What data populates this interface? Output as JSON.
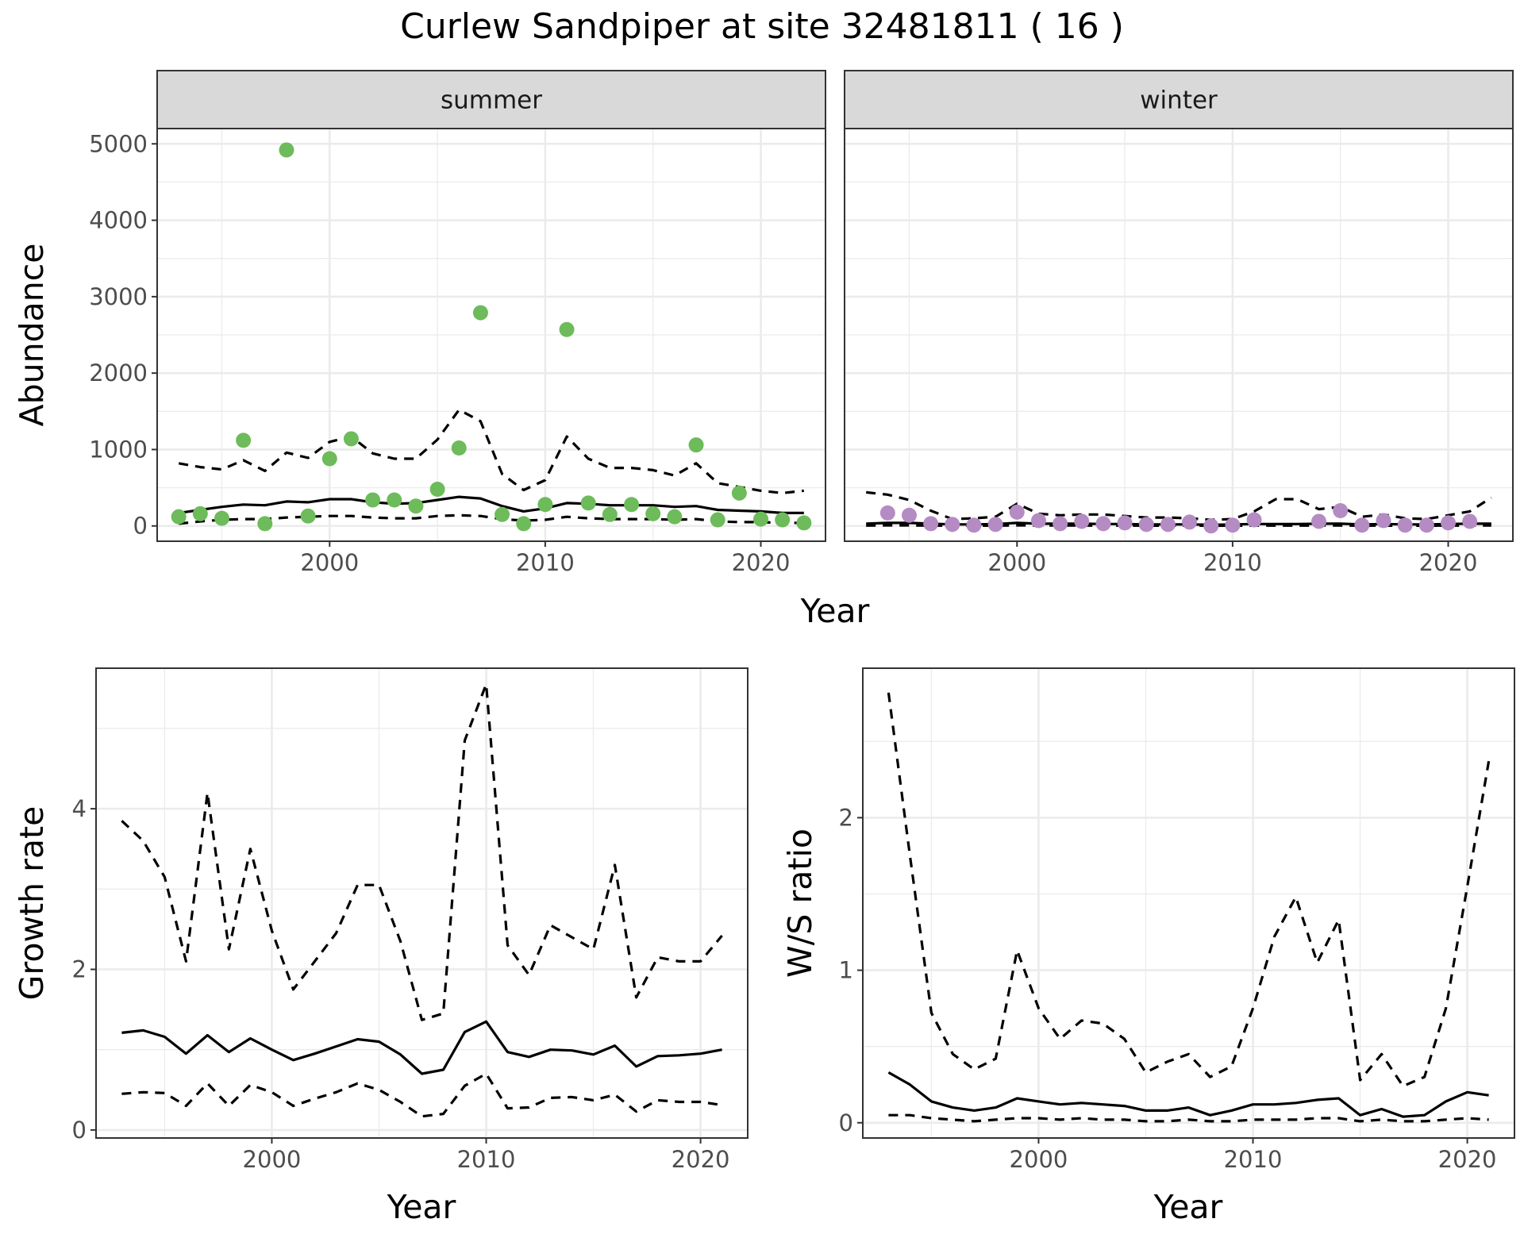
{
  "title": "Curlew Sandpiper at site 32481811 ( 16 )",
  "colors": {
    "summer_points": "#6dbb5a",
    "winter_points": "#b58bc4",
    "line": "#000000",
    "strip_fill": "#d9d9d9",
    "grid": "#ebebeb"
  },
  "chart_data": [
    {
      "type": "scatter",
      "panel": "abundance",
      "xlabel": "Year",
      "ylabel": "Abundance",
      "xlim": [
        1992,
        2023
      ],
      "ylim": [
        -200,
        5200
      ],
      "xticks": [
        2000,
        2010,
        2020
      ],
      "yticks": [
        0,
        1000,
        2000,
        3000,
        4000,
        5000
      ],
      "grid": true,
      "facets": [
        {
          "strip": "summer",
          "points": {
            "x": [
              1993,
              1994,
              1995,
              1996,
              1997,
              1998,
              1999,
              2000,
              2001,
              2002,
              2003,
              2004,
              2005,
              2006,
              2007,
              2008,
              2009,
              2010,
              2011,
              2012,
              2013,
              2014,
              2015,
              2016,
              2017,
              2018,
              2019,
              2020,
              2021,
              2022
            ],
            "y": [
              120,
              160,
              100,
              1120,
              30,
              4920,
              130,
              880,
              1140,
              340,
              340,
              260,
              480,
              1020,
              2790,
              150,
              30,
              280,
              2570,
              300,
              150,
              280,
              160,
              120,
              1060,
              80,
              430,
              90,
              80,
              40
            ]
          },
          "fit": {
            "x": [
              1993,
              1994,
              1995,
              1996,
              1997,
              1998,
              1999,
              2000,
              2001,
              2002,
              2003,
              2004,
              2005,
              2006,
              2007,
              2008,
              2009,
              2010,
              2011,
              2012,
              2013,
              2014,
              2015,
              2016,
              2017,
              2018,
              2019,
              2020,
              2021,
              2022
            ],
            "mean": [
              170,
              210,
              250,
              280,
              270,
              320,
              310,
              350,
              350,
              310,
              290,
              300,
              340,
              380,
              360,
              260,
              190,
              230,
              300,
              290,
              270,
              270,
              270,
              250,
              260,
              210,
              200,
              190,
              170,
              170
            ],
            "lower": [
              30,
              60,
              80,
              90,
              90,
              110,
              120,
              130,
              130,
              110,
              100,
              100,
              130,
              140,
              130,
              90,
              70,
              80,
              120,
              100,
              90,
              90,
              90,
              80,
              90,
              60,
              50,
              50,
              40,
              40
            ],
            "upper": [
              820,
              770,
              740,
              860,
              720,
              960,
              890,
              1100,
              1170,
              950,
              880,
              880,
              1130,
              1520,
              1370,
              680,
              470,
              600,
              1170,
              880,
              760,
              760,
              730,
              660,
              820,
              560,
              510,
              460,
              430,
              460
            ]
          }
        },
        {
          "strip": "winter",
          "points": {
            "x": [
              1994,
              1995,
              1996,
              1997,
              1998,
              1999,
              2000,
              2001,
              2002,
              2003,
              2004,
              2005,
              2006,
              2007,
              2008,
              2009,
              2010,
              2011,
              2014,
              2015,
              2016,
              2017,
              2018,
              2019,
              2020,
              2021
            ],
            "y": [
              170,
              140,
              30,
              20,
              10,
              20,
              180,
              70,
              30,
              60,
              30,
              40,
              20,
              20,
              50,
              0,
              10,
              80,
              60,
              200,
              10,
              70,
              10,
              10,
              40,
              60
            ]
          },
          "fit": {
            "x": [
              1993,
              1994,
              1995,
              1996,
              1997,
              1998,
              1999,
              2000,
              2001,
              2002,
              2003,
              2004,
              2005,
              2006,
              2007,
              2008,
              2009,
              2010,
              2011,
              2012,
              2013,
              2014,
              2015,
              2016,
              2017,
              2018,
              2019,
              2020,
              2021,
              2022
            ],
            "mean": [
              30,
              40,
              40,
              30,
              20,
              20,
              25,
              40,
              30,
              30,
              30,
              25,
              25,
              20,
              20,
              20,
              15,
              20,
              25,
              25,
              25,
              30,
              30,
              20,
              25,
              20,
              20,
              25,
              30,
              30
            ],
            "lower": [
              5,
              8,
              8,
              5,
              4,
              4,
              5,
              8,
              6,
              6,
              6,
              5,
              5,
              4,
              4,
              4,
              3,
              4,
              5,
              5,
              5,
              6,
              6,
              4,
              5,
              4,
              4,
              5,
              6,
              6
            ],
            "upper": [
              440,
              410,
              340,
              200,
              90,
              100,
              120,
              290,
              160,
              140,
              150,
              150,
              130,
              110,
              110,
              100,
              80,
              90,
              190,
              350,
              350,
              220,
              250,
              120,
              150,
              100,
              90,
              140,
              190,
              370
            ]
          }
        }
      ]
    },
    {
      "type": "line",
      "panel": "growth",
      "xlabel": "Year",
      "ylabel": "Growth rate",
      "xlim": [
        1991.8,
        2022.2
      ],
      "ylim": [
        -0.1,
        5.75
      ],
      "xticks": [
        2000,
        2010,
        2020
      ],
      "yticks": [
        0,
        2,
        4
      ],
      "grid": true,
      "x": [
        1993,
        1994,
        1995,
        1996,
        1997,
        1998,
        1999,
        2000,
        2001,
        2002,
        2003,
        2004,
        2005,
        2006,
        2007,
        2008,
        2009,
        2010,
        2011,
        2012,
        2013,
        2014,
        2015,
        2016,
        2017,
        2018,
        2019,
        2020,
        2021
      ],
      "mean": [
        1.21,
        1.24,
        1.16,
        0.95,
        1.18,
        0.97,
        1.14,
        1.0,
        0.87,
        0.95,
        1.04,
        1.13,
        1.1,
        0.94,
        0.7,
        0.75,
        1.22,
        1.35,
        0.97,
        0.91,
        1.0,
        0.99,
        0.94,
        1.05,
        0.79,
        0.92,
        0.93,
        0.95,
        1.0
      ],
      "lower": [
        0.45,
        0.47,
        0.46,
        0.3,
        0.58,
        0.3,
        0.56,
        0.47,
        0.3,
        0.39,
        0.47,
        0.58,
        0.5,
        0.35,
        0.17,
        0.2,
        0.55,
        0.7,
        0.27,
        0.28,
        0.4,
        0.41,
        0.37,
        0.44,
        0.23,
        0.37,
        0.35,
        0.35,
        0.31
      ],
      "upper": [
        3.85,
        3.6,
        3.15,
        2.1,
        4.2,
        2.25,
        3.5,
        2.48,
        1.75,
        2.1,
        2.45,
        3.05,
        3.05,
        2.35,
        1.37,
        1.45,
        4.85,
        5.55,
        2.3,
        1.93,
        2.55,
        2.4,
        2.25,
        3.3,
        1.65,
        2.15,
        2.1,
        2.1,
        2.42
      ]
    },
    {
      "type": "line",
      "panel": "ws_ratio",
      "xlabel": "Year",
      "ylabel": "W/S ratio",
      "xlim": [
        1991.8,
        2022.2
      ],
      "ylim": [
        -0.1,
        2.98
      ],
      "xticks": [
        2000,
        2010,
        2020
      ],
      "yticks": [
        0,
        1,
        2
      ],
      "grid": true,
      "x": [
        1993,
        1994,
        1995,
        1996,
        1997,
        1998,
        1999,
        2000,
        2001,
        2002,
        2003,
        2004,
        2005,
        2006,
        2007,
        2008,
        2009,
        2010,
        2011,
        2012,
        2013,
        2014,
        2015,
        2016,
        2017,
        2018,
        2019,
        2020,
        2021
      ],
      "mean": [
        0.33,
        0.25,
        0.14,
        0.1,
        0.08,
        0.1,
        0.16,
        0.14,
        0.12,
        0.13,
        0.12,
        0.11,
        0.08,
        0.08,
        0.1,
        0.05,
        0.08,
        0.12,
        0.12,
        0.13,
        0.15,
        0.16,
        0.05,
        0.09,
        0.04,
        0.05,
        0.14,
        0.2,
        0.18
      ],
      "lower": [
        0.05,
        0.05,
        0.03,
        0.02,
        0.01,
        0.02,
        0.03,
        0.03,
        0.02,
        0.03,
        0.02,
        0.02,
        0.01,
        0.01,
        0.02,
        0.01,
        0.01,
        0.02,
        0.02,
        0.02,
        0.03,
        0.03,
        0.01,
        0.02,
        0.01,
        0.01,
        0.02,
        0.03,
        0.02
      ],
      "upper": [
        2.82,
        1.75,
        0.72,
        0.45,
        0.35,
        0.42,
        1.13,
        0.75,
        0.55,
        0.67,
        0.65,
        0.55,
        0.33,
        0.4,
        0.45,
        0.3,
        0.37,
        0.75,
        1.22,
        1.48,
        1.05,
        1.33,
        0.28,
        0.45,
        0.24,
        0.3,
        0.75,
        1.55,
        2.37
      ]
    }
  ]
}
